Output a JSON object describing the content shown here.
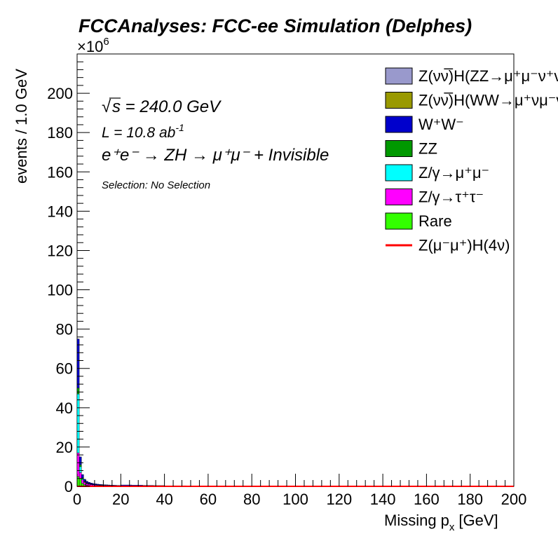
{
  "chart_data": {
    "type": "bar",
    "title": "FCCAnalyses: FCC-ee Simulation (Delphes)",
    "xlabel": "Missing p",
    "xlabel_sub": "x",
    "xlabel_unit": "[GeV]",
    "ylabel": "events / 1.0 GeV",
    "y_exponent_label": "×10",
    "y_exponent_power": "6",
    "xlim": [
      0,
      200
    ],
    "ylim": [
      0,
      220
    ],
    "x_ticks": [
      "0",
      "20",
      "40",
      "60",
      "80",
      "100",
      "120",
      "140",
      "160",
      "180",
      "200"
    ],
    "y_ticks": [
      "0",
      "20",
      "40",
      "60",
      "80",
      "100",
      "120",
      "140",
      "160",
      "180",
      "200"
    ],
    "annotations": {
      "energy_sqrt": "√",
      "energy": "s = 240.0 GeV",
      "lumi": "L = 10.8 ab",
      "lumi_exp": "-1",
      "process": "e⁺e⁻ → ZH → μ⁺μ⁻ + Invisible",
      "selection": "Selection: No Selection"
    },
    "legend_position": "top-right",
    "legend": [
      {
        "label": "Z(νν̅)H(ZZ→μ⁺μ⁻ν⁺ν⁻)",
        "color": "#9999cc",
        "style": "box"
      },
      {
        "label": "Z(νν̅)H(WW→μ⁺νμ⁻ν)",
        "color": "#999900",
        "style": "box"
      },
      {
        "label": "W⁺W⁻",
        "color": "#0000cc",
        "style": "box"
      },
      {
        "label": "ZZ",
        "color": "#009900",
        "style": "box"
      },
      {
        "label": "Z/γ→μ⁺μ⁻",
        "color": "#00ffff",
        "style": "box"
      },
      {
        "label": "Z/γ→τ⁺τ⁻",
        "color": "#ff00ff",
        "style": "box"
      },
      {
        "label": "Rare",
        "color": "#33ff00",
        "style": "box"
      },
      {
        "label": "Z(μ⁻μ⁺)H(4ν)",
        "color": "#ff0000",
        "style": "line"
      }
    ],
    "bin_width": 1,
    "stack_order": [
      "Rare",
      "Z/γ→τ⁺τ⁻",
      "Z/γ→μ⁺μ⁻",
      "ZZ",
      "W⁺W⁻"
    ],
    "series": [
      {
        "name": "Rare",
        "color": "#33ff00",
        "values": [
          5.0,
          4.0,
          1.5,
          0.8,
          0.5,
          0.4,
          0.3,
          0.25,
          0.2,
          0.18,
          0.15,
          0.14,
          0.12,
          0.11,
          0.1,
          0.09,
          0.08,
          0.07,
          0.06,
          0.06
        ]
      },
      {
        "name": "Z/γ→τ⁺τ⁻",
        "color": "#ff00ff",
        "values": [
          12.0,
          3.0,
          1.8,
          1.2,
          0.9,
          0.7,
          0.6,
          0.5,
          0.45,
          0.4,
          0.35,
          0.3,
          0.28,
          0.26,
          0.24,
          0.22,
          0.2,
          0.18,
          0.16,
          0.15
        ]
      },
      {
        "name": "Z/γ→μ⁺μ⁻",
        "color": "#00ffff",
        "values": [
          30.0,
          3.0,
          0.5,
          0.3,
          0.2,
          0.15,
          0.1,
          0.08,
          0.06,
          0.05,
          0.04,
          0.04,
          0.03,
          0.03,
          0.02,
          0.02,
          0.02,
          0.02,
          0.01,
          0.01
        ]
      },
      {
        "name": "ZZ",
        "color": "#009900",
        "values": [
          3.0,
          1.0,
          0.5,
          0.3,
          0.2,
          0.2,
          0.15,
          0.1,
          0.1,
          0.08,
          0.08,
          0.07,
          0.06,
          0.05,
          0.05,
          0.04,
          0.04,
          0.04,
          0.03,
          0.03
        ]
      },
      {
        "name": "W⁺W⁻",
        "color": "#0000cc",
        "values": [
          25.0,
          4.0,
          1.7,
          1.0,
          0.8,
          0.6,
          0.55,
          0.5,
          0.45,
          0.4,
          0.38,
          0.35,
          0.33,
          0.31,
          0.29,
          0.27,
          0.26,
          0.25,
          0.24,
          0.23
        ]
      }
    ],
    "tail_total": [
      [
        20,
        0.7
      ],
      [
        25,
        0.6
      ],
      [
        30,
        0.5
      ],
      [
        35,
        0.4
      ],
      [
        40,
        0.3
      ],
      [
        50,
        0.2
      ],
      [
        56,
        0.1
      ],
      [
        60,
        0.05
      ],
      [
        100,
        0.02
      ],
      [
        200,
        0.01
      ]
    ],
    "signal_line": {
      "name": "Z(μ⁻μ⁺)H(4ν)",
      "color": "#ff0000",
      "value": 0.02
    }
  }
}
